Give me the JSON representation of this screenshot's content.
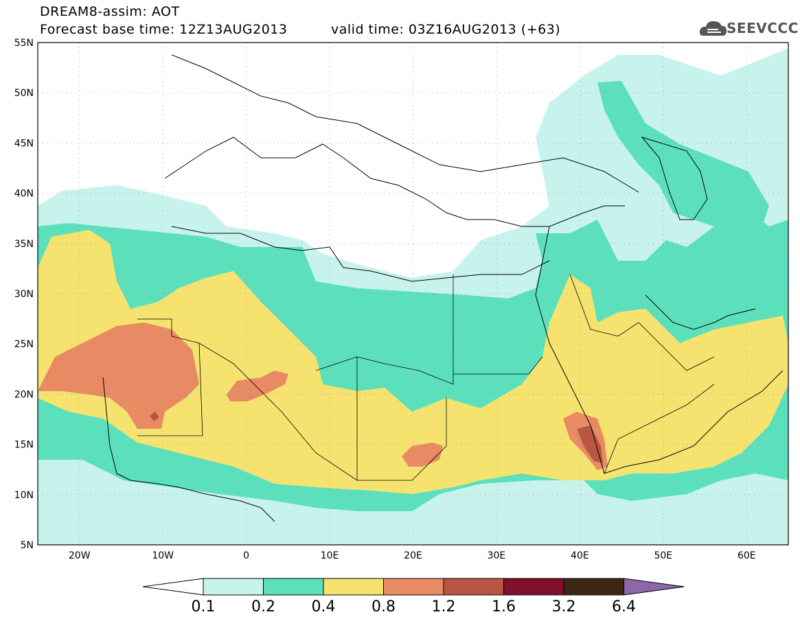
{
  "header": {
    "title_line1": "DREAM8-assim: AOT",
    "title_line2": "Forecast base time: 12Z13AUG2013",
    "valid_time": "valid time: 03Z16AUG2013 (+63)",
    "logo": "SEEVCCC",
    "logo_icon": "cloud-icon"
  },
  "map": {
    "lon_range": [
      -25,
      65
    ],
    "lat_range": [
      5,
      55
    ],
    "lat_labels": [
      "55N",
      "50N",
      "45N",
      "40N",
      "35N",
      "30N",
      "25N",
      "20N",
      "15N",
      "10N",
      "5N"
    ],
    "lon_labels": [
      "20W",
      "10W",
      "0",
      "10E",
      "20E",
      "30E",
      "40E",
      "50E",
      "60E"
    ],
    "grid": "dotted"
  },
  "colorbar": {
    "colors": [
      "#c8f3ec",
      "#5ce0bc",
      "#f6e36f",
      "#e88a64",
      "#b95642",
      "#820f2c",
      "#3d2614",
      "#8c67aa"
    ],
    "labels": [
      "0.1",
      "0.2",
      "0.4",
      "0.8",
      "1.2",
      "1.6",
      "3.2",
      "6.4"
    ]
  }
}
